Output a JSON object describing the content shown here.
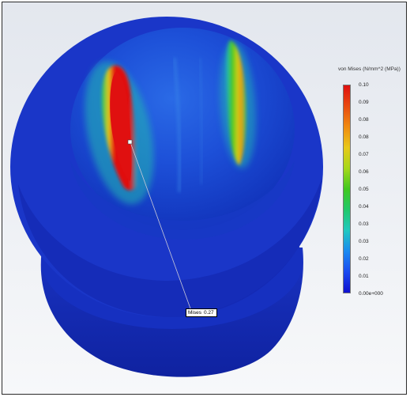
{
  "legend": {
    "title": "von Mises (N/mm^2 (MPa))",
    "labels": [
      "0.10",
      "0.09",
      "0.08",
      "0.08",
      "0.07",
      "0.06",
      "0.05",
      "0.04",
      "0.03",
      "0.03",
      "0.02",
      "0.01",
      "0.00e+000"
    ]
  },
  "probe": {
    "key": "Mises",
    "value": "0.27"
  },
  "colors": {
    "background_top": "#e3e7ee",
    "background_bottom": "#f7f8fa",
    "model_blue": "#1428c8",
    "high_stress": "#e01010"
  }
}
